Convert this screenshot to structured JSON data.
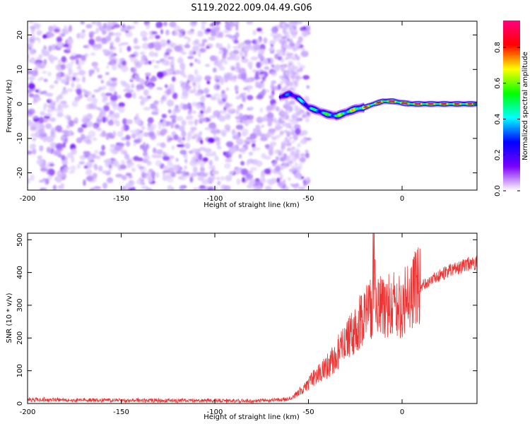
{
  "figure": {
    "title": "S119.2022.009.04.49.G06"
  },
  "colors": {
    "snr_line": "#ee3333",
    "axes": "#000000"
  },
  "chart_data": [
    {
      "type": "heatmap",
      "xlabel": "Height of straight line (km)",
      "ylabel": "Frequency (Hz)",
      "xlim": [
        -200,
        40
      ],
      "ylim": [
        -25,
        24
      ],
      "x_ticks": [
        -200,
        -150,
        -100,
        -50,
        0
      ],
      "y_ticks": [
        -20,
        -10,
        0,
        10,
        20
      ],
      "colorbar": {
        "label": "Normalized spectral amplitude",
        "range": [
          0,
          0.95
        ],
        "ticks": [
          0.0,
          0.2,
          0.4,
          0.6,
          0.8
        ],
        "tick_labels": [
          "0.0",
          "0.2",
          "0.4",
          "0.6",
          "0.8"
        ],
        "colormap": [
          "#ffffff",
          "#7b00ff",
          "#0000ff",
          "#00ffff",
          "#00ff00",
          "#ffff00",
          "#ff0000",
          "#ff0080"
        ]
      },
      "ridge": {
        "x": [
          -65,
          -60,
          -55,
          -50,
          -45,
          -40,
          -35,
          -30,
          -25,
          -20,
          -15,
          -10,
          -5,
          0,
          5,
          10,
          20,
          30,
          40
        ],
        "frequency": [
          2,
          3,
          1.5,
          -1,
          -2,
          -3,
          -3.5,
          -2.5,
          -1.5,
          -1,
          0,
          0.8,
          0.8,
          0.3,
          0,
          0,
          0,
          0,
          0
        ],
        "amplitude": [
          0.3,
          0.3,
          0.35,
          0.4,
          0.45,
          0.5,
          0.55,
          0.6,
          0.65,
          0.7,
          0.75,
          0.8,
          0.85,
          0.85,
          0.85,
          0.85,
          0.8,
          0.8,
          0.75
        ]
      }
    },
    {
      "type": "line",
      "xlabel": "Height of straight line (km)",
      "ylabel": "SNR (10 * v/v)",
      "xlim": [
        -200,
        40
      ],
      "ylim": [
        0,
        520
      ],
      "x_ticks": [
        -200,
        -150,
        -100,
        -50,
        0
      ],
      "y_ticks": [
        0,
        100,
        200,
        300,
        400,
        500
      ],
      "series": [
        {
          "x": [
            -200,
            -180,
            -160,
            -140,
            -120,
            -100,
            -80,
            -70,
            -62,
            -58,
            -55,
            -52,
            -50,
            -47,
            -45,
            -42,
            -40,
            -37,
            -35,
            -32,
            -30,
            -27,
            -25,
            -22,
            -20,
            -18,
            -16,
            -15,
            -14,
            -12,
            -10,
            -8,
            -6,
            -4,
            -2,
            0,
            2,
            5,
            8,
            10,
            13,
            16,
            20,
            25,
            30,
            35,
            40
          ],
          "y": [
            12,
            11,
            10,
            10,
            9,
            9,
            8,
            10,
            12,
            20,
            35,
            50,
            60,
            80,
            90,
            100,
            115,
            130,
            150,
            175,
            200,
            215,
            230,
            250,
            270,
            290,
            300,
            520,
            280,
            290,
            300,
            310,
            300,
            320,
            310,
            300,
            330,
            340,
            350,
            360,
            370,
            380,
            390,
            405,
            415,
            425,
            430
          ]
        }
      ]
    }
  ]
}
